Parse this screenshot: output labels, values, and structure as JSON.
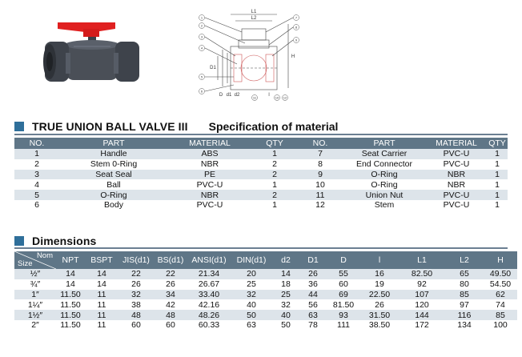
{
  "headings": {
    "product": "TRUE UNION BALL VALVE III",
    "spec": "Specification of material",
    "dimensions": "Dimensions"
  },
  "drawing_labels": {
    "l1": "L1",
    "l2": "L2",
    "h": "H",
    "d1": "D1",
    "d": "D",
    "d1_small": "d1",
    "d2": "d2",
    "l": "l",
    "callouts": [
      "1",
      "2",
      "3",
      "4",
      "5",
      "6",
      "7",
      "8",
      "9",
      "10",
      "11",
      "12"
    ]
  },
  "material": {
    "headers": [
      "NO.",
      "PART",
      "MATERIAL",
      "QTY",
      "NO.",
      "PART",
      "MATERIAL",
      "QTY"
    ],
    "rows": [
      [
        "1",
        "Handle",
        "ABS",
        "1",
        "7",
        "Seat Carrier",
        "PVC-U",
        "1"
      ],
      [
        "2",
        "Stem 0-Ring",
        "NBR",
        "2",
        "8",
        "End Connector",
        "PVC-U",
        "1"
      ],
      [
        "3",
        "Seat Seal",
        "PE",
        "2",
        "9",
        "O-Ring",
        "NBR",
        "1"
      ],
      [
        "4",
        "Ball",
        "PVC-U",
        "1",
        "10",
        "O-Ring",
        "NBR",
        "1"
      ],
      [
        "5",
        "O-Ring",
        "NBR",
        "2",
        "11",
        "Union Nut",
        "PVC-U",
        "1"
      ],
      [
        "6",
        "Body",
        "PVC-U",
        "1",
        "12",
        "Stem",
        "PVC-U",
        "1"
      ]
    ]
  },
  "dimensions": {
    "corner_top": "Nom",
    "corner_bottom": "Size",
    "headers": [
      "NPT",
      "BSPT",
      "JIS(d1)",
      "BS(d1)",
      "ANSI(d1)",
      "DIN(d1)",
      "d2",
      "D1",
      "D",
      "l",
      "L1",
      "L2",
      "H"
    ],
    "rows": [
      [
        "½″",
        "14",
        "14",
        "22",
        "22",
        "21.34",
        "20",
        "14",
        "26",
        "55",
        "16",
        "82.50",
        "65",
        "49.50"
      ],
      [
        "¾″",
        "14",
        "14",
        "26",
        "26",
        "26.67",
        "25",
        "18",
        "36",
        "60",
        "19",
        "92",
        "80",
        "54.50"
      ],
      [
        "1″",
        "11.50",
        "11",
        "32",
        "34",
        "33.40",
        "32",
        "25",
        "44",
        "69",
        "22.50",
        "107",
        "85",
        "62"
      ],
      [
        "1¼″",
        "11.50",
        "11",
        "38",
        "42",
        "42.16",
        "40",
        "32",
        "56",
        "81.50",
        "26",
        "120",
        "97",
        "74"
      ],
      [
        "1½″",
        "11.50",
        "11",
        "48",
        "48",
        "48.26",
        "50",
        "40",
        "63",
        "93",
        "31.50",
        "144",
        "116",
        "85"
      ],
      [
        "2″",
        "11.50",
        "11",
        "60",
        "60",
        "60.33",
        "63",
        "50",
        "78",
        "111",
        "38.50",
        "172",
        "134",
        "100"
      ]
    ]
  },
  "colors": {
    "header_bg": "#5f7687",
    "stripe": "#dde4ea",
    "accent_square": "#2f6f9a",
    "handle_red": "#e02020",
    "body_grey": "#4a4f57"
  }
}
